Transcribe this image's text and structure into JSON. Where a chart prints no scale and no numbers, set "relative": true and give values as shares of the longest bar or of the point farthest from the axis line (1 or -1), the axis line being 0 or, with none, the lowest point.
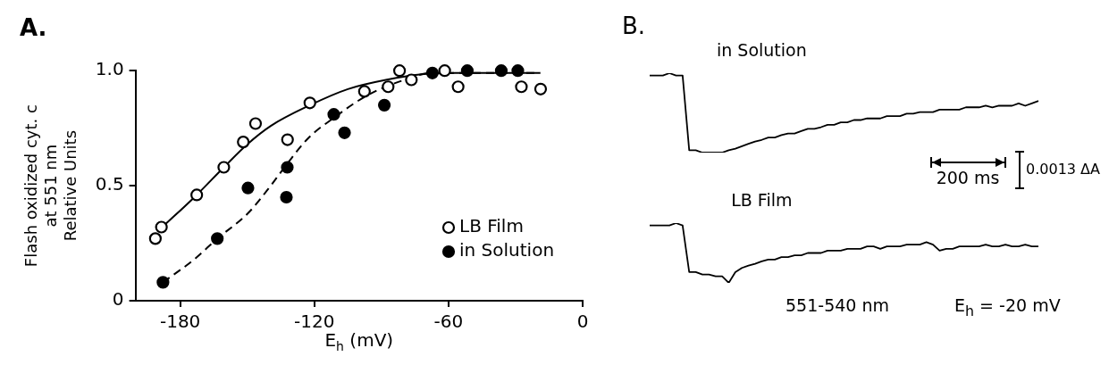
{
  "chart_data": [
    {
      "type": "scatter",
      "title": "A.",
      "xlabel": "E$_{h}$ (mV)",
      "ylabel": "Flash oxidized cyt. c\nat 551 nm\nRelative Units",
      "xlim": [
        -200,
        0
      ],
      "xticks": [
        -180,
        -120,
        -60,
        0
      ],
      "ylim": [
        0,
        1
      ],
      "yticks": [
        0,
        0.5,
        {
          "value": 1,
          "label": "1.0"
        }
      ],
      "grid": false,
      "legend": "bottom right",
      "series": [
        {
          "name": "LB Film",
          "type": "scatter",
          "marker": "circle-open",
          "color": "#000000",
          "x": [
            -191.1,
            -188.4,
            -172.6,
            -160.5,
            -151.8,
            -146.3,
            -132,
            -122,
            -97.6,
            -87,
            -81.9,
            -76.6,
            -61.7,
            -55.7,
            -27.4,
            -18.8
          ],
          "values": [
            0.27,
            0.32,
            0.46,
            0.58,
            0.69,
            0.77,
            0.7,
            0.86,
            0.91,
            0.93,
            1.0,
            0.96,
            1.0,
            0.93,
            0.93,
            0.92
          ]
        },
        {
          "name": "in Solution",
          "type": "scatter",
          "marker": "circle",
          "color": "#000000",
          "x": [
            -187.7,
            -163.4,
            -149.7,
            -132.1,
            -132.5,
            -111.3,
            -106.5,
            -88.7,
            -67.2,
            -51.6,
            -36.4,
            -29
          ],
          "values": [
            0.08,
            0.27,
            0.49,
            0.58,
            0.45,
            0.81,
            0.73,
            0.85,
            0.99,
            1.0,
            1.0,
            1.0
          ]
        },
        {
          "type": "line",
          "marker": "none",
          "line_style": "solid",
          "color": "#000000",
          "x": [
            -188,
            -172.6,
            -160.5,
            -150,
            -139.5,
            -122,
            -105,
            -88,
            -71,
            -54,
            -19
          ],
          "values": [
            0.32,
            0.46,
            0.58,
            0.68,
            0.76,
            0.85,
            0.92,
            0.96,
            0.985,
            0.99,
            0.99
          ]
        },
        {
          "type": "line",
          "marker": "none",
          "line_style": "dashed",
          "color": "#000000",
          "x": [
            -187.7,
            -173.7,
            -163.4,
            -149.7,
            -139.5,
            -131.8,
            -122.4,
            -112,
            -96.8,
            -79.7,
            -67.7,
            -54,
            -19
          ],
          "values": [
            0.08,
            0.18,
            0.27,
            0.38,
            0.5,
            0.6,
            0.71,
            0.79,
            0.89,
            0.96,
            0.99,
            0.99,
            0.99
          ]
        }
      ]
    },
    {
      "type": "line",
      "title": "B.",
      "relative": true,
      "marker": "none",
      "annotations": [
        "200 ms",
        "0.0013 ΔA"
      ],
      "categories": [
        null,
        null,
        null,
        null,
        null,
        null,
        null,
        null,
        null,
        null,
        null,
        null,
        null,
        null,
        null,
        null,
        null,
        null,
        null,
        null,
        null,
        null,
        null,
        null,
        null,
        null,
        null,
        null,
        null,
        null,
        null,
        null,
        null,
        null,
        null,
        null,
        null,
        null,
        null,
        null,
        null,
        null,
        null,
        null,
        null,
        null,
        null,
        null,
        null,
        null,
        null,
        null,
        null,
        null,
        null,
        null,
        null,
        null,
        null,
        null
      ],
      "series": [
        {
          "name": "in Solution",
          "color": "#000000",
          "values": [
            0.97,
            0.97,
            0.97,
            1,
            0.97,
            0.97,
            0.03,
            0.03,
            0,
            0,
            0,
            0,
            0.03,
            0.05,
            0.08,
            0.11,
            0.14,
            0.16,
            0.19,
            0.19,
            0.22,
            0.24,
            0.24,
            0.27,
            0.3,
            0.3,
            0.32,
            0.35,
            0.35,
            0.38,
            0.38,
            0.41,
            0.41,
            0.43,
            0.43,
            0.43,
            0.46,
            0.46,
            0.46,
            0.49,
            0.49,
            0.51,
            0.51,
            0.51,
            0.54,
            0.54,
            0.54,
            0.54,
            0.57,
            0.57,
            0.57,
            0.59,
            0.57,
            0.59,
            0.59,
            0.59,
            0.62,
            0.59,
            0.62,
            0.65
          ]
        }
      ]
    },
    {
      "type": "line",
      "relative": true,
      "marker": "none",
      "annotations": [
        "551-540 nm",
        "E$_{h}$ = -20 mV"
      ],
      "categories": [
        null,
        null,
        null,
        null,
        null,
        null,
        null,
        null,
        null,
        null,
        null,
        null,
        null,
        null,
        null,
        null,
        null,
        null,
        null,
        null,
        null,
        null,
        null,
        null,
        null,
        null,
        null,
        null,
        null,
        null,
        null,
        null,
        null,
        null,
        null,
        null,
        null,
        null,
        null,
        null,
        null,
        null,
        null,
        null,
        null,
        null,
        null,
        null,
        null,
        null,
        null,
        null,
        null,
        null,
        null,
        null,
        null,
        null,
        null,
        null
      ],
      "series": [
        {
          "name": "LB Film",
          "color": "#000000",
          "values": [
            0.96,
            0.96,
            0.96,
            0.96,
            1,
            0.96,
            0.18,
            0.18,
            0.14,
            0.14,
            0.11,
            0.11,
            0,
            0.18,
            0.25,
            0.29,
            0.32,
            0.36,
            0.39,
            0.39,
            0.43,
            0.43,
            0.46,
            0.46,
            0.5,
            0.5,
            0.5,
            0.54,
            0.54,
            0.54,
            0.57,
            0.57,
            0.57,
            0.61,
            0.61,
            0.57,
            0.61,
            0.61,
            0.61,
            0.64,
            0.64,
            0.64,
            0.68,
            0.64,
            0.54,
            0.57,
            0.57,
            0.61,
            0.61,
            0.61,
            0.61,
            0.64,
            0.61,
            0.61,
            0.64,
            0.61,
            0.61,
            0.64,
            0.61,
            0.61
          ]
        }
      ]
    }
  ]
}
